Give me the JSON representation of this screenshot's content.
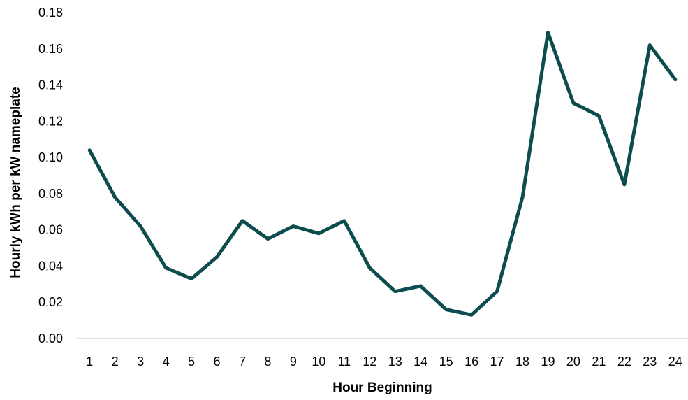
{
  "chart_data": {
    "type": "line",
    "title": "",
    "xlabel": "Hour Beginning",
    "ylabel": "Hourly kWh per kW nameplate",
    "x": [
      1,
      2,
      3,
      4,
      5,
      6,
      7,
      8,
      9,
      10,
      11,
      12,
      13,
      14,
      15,
      16,
      17,
      18,
      19,
      20,
      21,
      22,
      23,
      24
    ],
    "x_tick_labels": [
      "1",
      "2",
      "3",
      "4",
      "5",
      "6",
      "7",
      "8",
      "9",
      "10",
      "11",
      "12",
      "13",
      "14",
      "15",
      "16",
      "17",
      "18",
      "19",
      "20",
      "21",
      "22",
      "23",
      "24"
    ],
    "series": [
      {
        "values": [
          0.104,
          0.078,
          0.062,
          0.039,
          0.033,
          0.045,
          0.065,
          0.055,
          0.062,
          0.058,
          0.065,
          0.039,
          0.026,
          0.029,
          0.016,
          0.013,
          0.026,
          0.078,
          0.169,
          0.13,
          0.123,
          0.085,
          0.162,
          0.143
        ],
        "color": "#0d4d4f"
      }
    ],
    "ylim": [
      0,
      0.18
    ],
    "y_ticks": [
      0,
      0.02,
      0.04,
      0.06,
      0.08,
      0.1,
      0.12,
      0.14,
      0.16,
      0.18
    ],
    "y_tick_labels": [
      "0.00",
      "0.02",
      "0.04",
      "0.06",
      "0.08",
      "0.10",
      "0.12",
      "0.14",
      "0.16",
      "0.18"
    ],
    "grid": false,
    "legend": "none",
    "axis_color": "#d9d9d9"
  }
}
